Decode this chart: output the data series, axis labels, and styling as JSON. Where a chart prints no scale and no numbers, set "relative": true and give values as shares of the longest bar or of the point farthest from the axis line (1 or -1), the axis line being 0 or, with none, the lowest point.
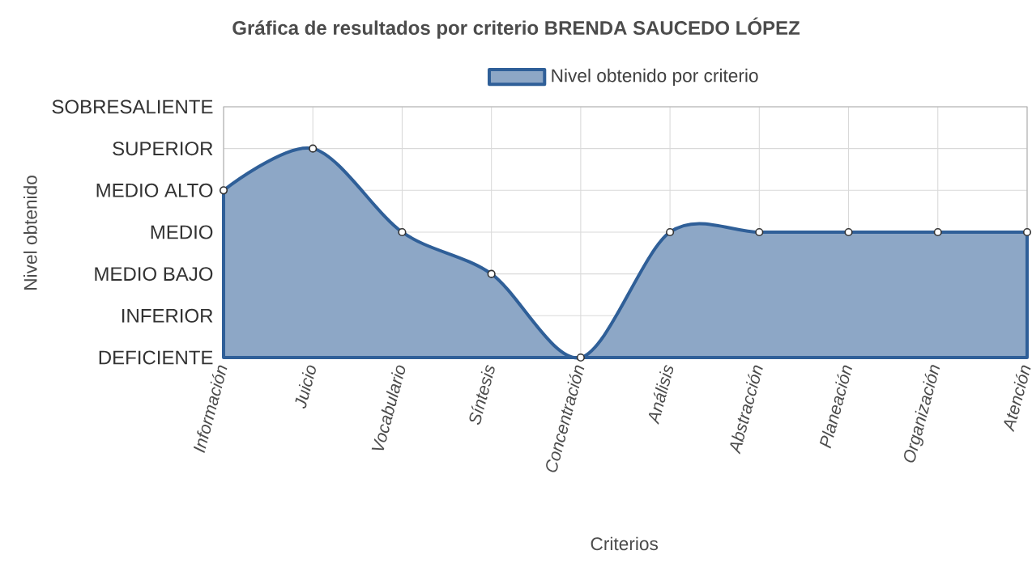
{
  "chart_data": {
    "type": "area",
    "title": "Gráfica de resultados por criterio BRENDA SAUCEDO LÓPEZ",
    "xlabel": "Criterios",
    "categories": [
      "Información",
      "Juicio",
      "Vocabulario",
      "Síntesis",
      "Concentración",
      "Análisis",
      "Abstracción",
      "Planeación",
      "Organización",
      "Atención"
    ],
    "series": [
      {
        "name": "Nivel obtenido por criterio",
        "color": "#2f5f98",
        "values": [
          0.8,
          1,
          0.6,
          0.4,
          0,
          0.6,
          0.6,
          0.6,
          0.6,
          0.6
        ]
      }
    ],
    "relative": true,
    "annotations": [
      "Nivel obtenido",
      "DEFICIENTE",
      "INFERIOR",
      "MEDIO BAJO",
      "MEDIO",
      "MEDIO ALTO",
      "SUPERIOR",
      "SOBRESALIENTE"
    ],
    "grid": true,
    "legend": "top",
    "marker": "circle"
  }
}
